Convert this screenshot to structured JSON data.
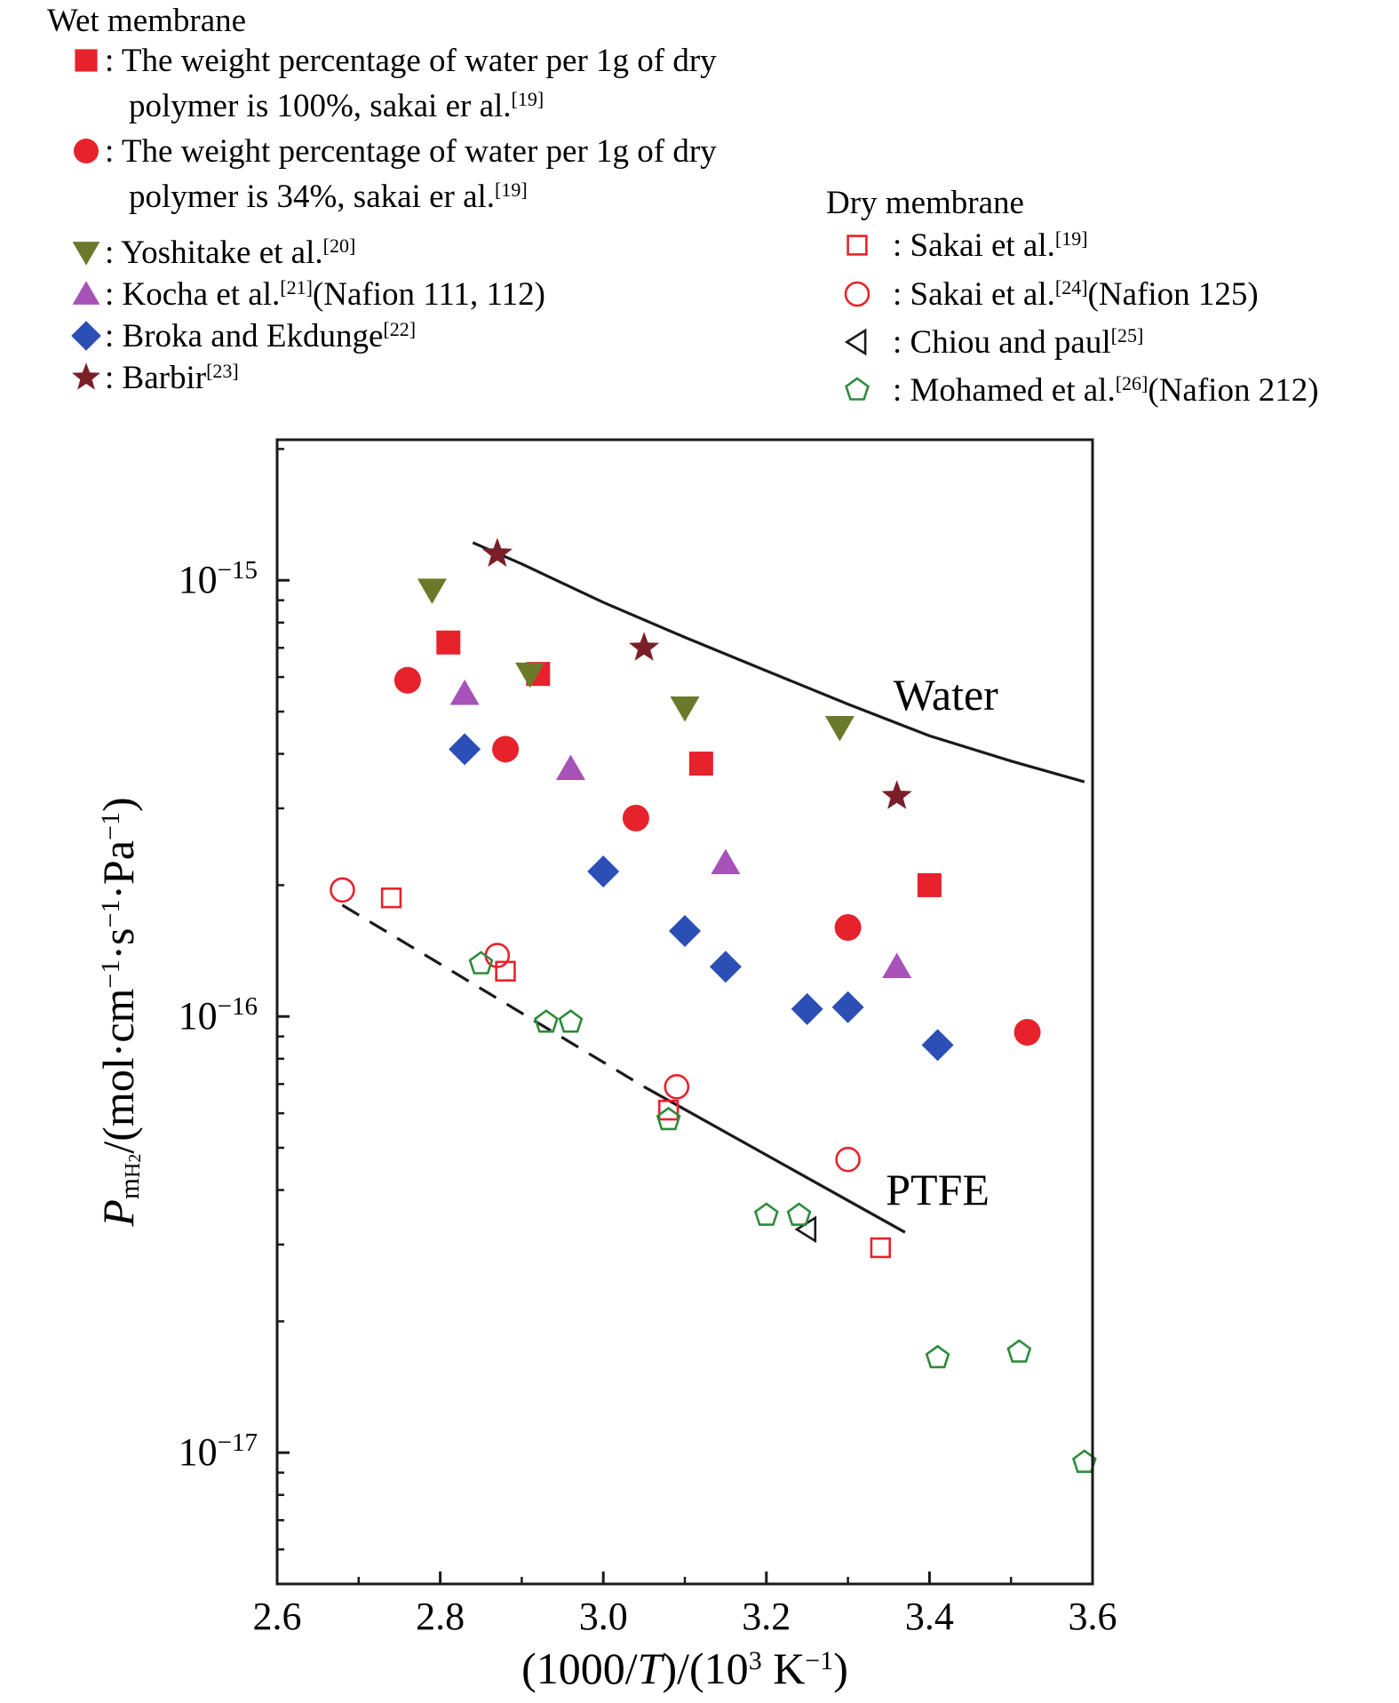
{
  "legend": {
    "wet_title": "Wet membrane",
    "dry_title": "Dry membrane",
    "wet_entries": [
      {
        "marker": "square-filled",
        "color": "#e8222c",
        "lines": [
          [
            {
              "t": ": The weight percentage of water per 1g of dry"
            }
          ],
          [
            {
              "t": "polymer is 100%, sakai er al."
            },
            {
              "t": "[19]",
              "sup": true
            }
          ]
        ]
      },
      {
        "marker": "circle-filled",
        "color": "#e8222c",
        "lines": [
          [
            {
              "t": ": The weight percentage of water per 1g of dry"
            }
          ],
          [
            {
              "t": "polymer is 34%, sakai er al."
            },
            {
              "t": "[19]",
              "sup": true
            }
          ]
        ]
      },
      {
        "marker": "triangle-down-filled",
        "color": "#6b7a2a",
        "lines": [
          [
            {
              "t": ": Yoshitake et al."
            },
            {
              "t": "[20]",
              "sup": true
            }
          ]
        ]
      },
      {
        "marker": "triangle-up-filled",
        "color": "#a652b8",
        "lines": [
          [
            {
              "t": ": Kocha et al."
            },
            {
              "t": "[21]",
              "sup": true
            },
            {
              "t": "(Nafion 111, 112)"
            }
          ]
        ]
      },
      {
        "marker": "diamond-filled",
        "color": "#2b4fb5",
        "lines": [
          [
            {
              "t": ": Broka and Ekdunge"
            },
            {
              "t": "[22]",
              "sup": true
            }
          ]
        ]
      },
      {
        "marker": "star-filled",
        "color": "#7a1f28",
        "lines": [
          [
            {
              "t": ": Barbir"
            },
            {
              "t": "[23]",
              "sup": true
            }
          ]
        ]
      }
    ],
    "dry_entries": [
      {
        "marker": "square-open",
        "color": "#e8222c",
        "lines": [
          [
            {
              "t": ": Sakai et al."
            },
            {
              "t": "[19]",
              "sup": true
            }
          ]
        ]
      },
      {
        "marker": "circle-open",
        "color": "#e8222c",
        "lines": [
          [
            {
              "t": ": Sakai et al."
            },
            {
              "t": "[24]",
              "sup": true
            },
            {
              "t": "(Nafion 125)"
            }
          ]
        ]
      },
      {
        "marker": "triangle-left-open",
        "color": "#1a1a1a",
        "lines": [
          [
            {
              "t": ": Chiou and paul"
            },
            {
              "t": "[25]",
              "sup": true
            }
          ]
        ]
      },
      {
        "marker": "pentagon-open",
        "color": "#2e8a3a",
        "lines": [
          [
            {
              "t": ": Mohamed et al."
            },
            {
              "t": "[26]",
              "sup": true
            },
            {
              "t": "(Nafion 212)"
            }
          ]
        ]
      }
    ]
  },
  "chart_data": {
    "type": "scatter",
    "xlabel_parts": [
      {
        "t": "(1000/"
      },
      {
        "t": "T",
        "it": true
      },
      {
        "t": ")/(10"
      },
      {
        "t": "3",
        "sup": true
      },
      {
        "t": " K"
      },
      {
        "t": "−1",
        "sup": true
      },
      {
        "t": ")"
      }
    ],
    "ylabel_parts": [
      {
        "t": "P",
        "it": true
      },
      {
        "t": "m",
        "sub": true
      },
      {
        "t": "H",
        "subsub": true
      },
      {
        "t": "2",
        "subsubsub": true
      },
      {
        "t": "/(mol·cm"
      },
      {
        "t": "−1",
        "sup": true
      },
      {
        "t": "·s"
      },
      {
        "t": "−1",
        "sup": true
      },
      {
        "t": "·Pa"
      },
      {
        "t": "−1",
        "sup": true
      },
      {
        "t": ")"
      }
    ],
    "x_ticks": [
      "2.6",
      "2.8",
      "3.0",
      "3.2",
      "3.4",
      "3.6"
    ],
    "x_tick_values": [
      2.6,
      2.8,
      3.0,
      3.2,
      3.4,
      3.6
    ],
    "y_ticks": [
      {
        "base": "10",
        "exp": "−15",
        "value": 1e-15
      },
      {
        "base": "10",
        "exp": "−16",
        "value": 1e-16
      },
      {
        "base": "10",
        "exp": "−17",
        "value": 1e-17
      }
    ],
    "xlim": [
      2.6,
      3.6
    ],
    "ylim": [
      5e-18,
      2.1e-15
    ],
    "yscale": "log",
    "grid": false,
    "annotations": [
      {
        "text": "Water",
        "x": 3.42,
        "y": 5.05e-16
      },
      {
        "text": "PTFE",
        "x": 3.41,
        "y": 3.7e-17
      }
    ],
    "lines": [
      {
        "name": "Water",
        "style": "solid",
        "points": [
          [
            2.84,
            1.22e-15
          ],
          [
            2.9,
            1.09e-15
          ],
          [
            3.0,
            8.9e-16
          ],
          [
            3.1,
            7.4e-16
          ],
          [
            3.2,
            6.2e-16
          ],
          [
            3.3,
            5.2e-16
          ],
          [
            3.4,
            4.4e-16
          ],
          [
            3.5,
            3.85e-16
          ],
          [
            3.59,
            3.45e-16
          ]
        ]
      },
      {
        "name": "PTFE",
        "style": "dashed-solid",
        "dash_until": 3.05,
        "points": [
          [
            2.68,
            1.8e-16
          ],
          [
            3.05,
            6.9e-17
          ],
          [
            3.37,
            3.2e-17
          ]
        ]
      }
    ],
    "series": [
      {
        "marker": "square-filled",
        "color": "#e8222c",
        "points": [
          [
            2.81,
            7.2e-16
          ],
          [
            2.92,
            6.1e-16
          ],
          [
            3.12,
            3.8e-16
          ],
          [
            3.4,
            2e-16
          ]
        ]
      },
      {
        "marker": "circle-filled",
        "color": "#e8222c",
        "points": [
          [
            2.76,
            5.9e-16
          ],
          [
            2.88,
            4.1e-16
          ],
          [
            3.04,
            2.85e-16
          ],
          [
            3.3,
            1.6e-16
          ],
          [
            3.52,
            9.2e-17
          ]
        ]
      },
      {
        "marker": "triangle-down-filled",
        "color": "#6b7a2a",
        "points": [
          [
            2.79,
            9.5e-16
          ],
          [
            2.91,
            6.1e-16
          ],
          [
            3.1,
            5.1e-16
          ],
          [
            3.29,
            4.6e-16
          ]
        ]
      },
      {
        "marker": "triangle-up-filled",
        "color": "#a652b8",
        "points": [
          [
            2.83,
            5.5e-16
          ],
          [
            2.96,
            3.7e-16
          ],
          [
            3.15,
            2.25e-16
          ],
          [
            3.36,
            1.3e-16
          ]
        ]
      },
      {
        "marker": "diamond-filled",
        "color": "#2b4fb5",
        "points": [
          [
            2.83,
            4.1e-16
          ],
          [
            3.0,
            2.15e-16
          ],
          [
            3.1,
            1.57e-16
          ],
          [
            3.15,
            1.3e-16
          ],
          [
            3.25,
            1.04e-16
          ],
          [
            3.3,
            1.05e-16
          ],
          [
            3.41,
            8.6e-17
          ]
        ]
      },
      {
        "marker": "star-filled",
        "color": "#7a1f28",
        "points": [
          [
            2.87,
            1.15e-15
          ],
          [
            3.05,
            7e-16
          ],
          [
            3.36,
            3.2e-16
          ]
        ]
      },
      {
        "marker": "square-open",
        "color": "#e8222c",
        "points": [
          [
            2.74,
            1.87e-16
          ],
          [
            2.88,
            1.27e-16
          ],
          [
            3.08,
            6.1e-17
          ],
          [
            3.34,
            2.95e-17
          ]
        ]
      },
      {
        "marker": "circle-open",
        "color": "#e8222c",
        "points": [
          [
            2.68,
            1.95e-16
          ],
          [
            2.87,
            1.38e-16
          ],
          [
            3.09,
            6.9e-17
          ],
          [
            3.3,
            4.7e-17
          ]
        ]
      },
      {
        "marker": "triangle-left-open",
        "color": "#1a1a1a",
        "points": [
          [
            3.25,
            3.25e-17
          ]
        ]
      },
      {
        "marker": "pentagon-open",
        "color": "#2e8a3a",
        "points": [
          [
            2.85,
            1.32e-16
          ],
          [
            2.93,
            9.7e-17
          ],
          [
            2.96,
            9.7e-17
          ],
          [
            3.08,
            5.8e-17
          ],
          [
            3.2,
            3.5e-17
          ],
          [
            3.24,
            3.5e-17
          ],
          [
            3.41,
            1.65e-17
          ],
          [
            3.51,
            1.7e-17
          ],
          [
            3.59,
            9.5e-18
          ]
        ]
      }
    ]
  }
}
